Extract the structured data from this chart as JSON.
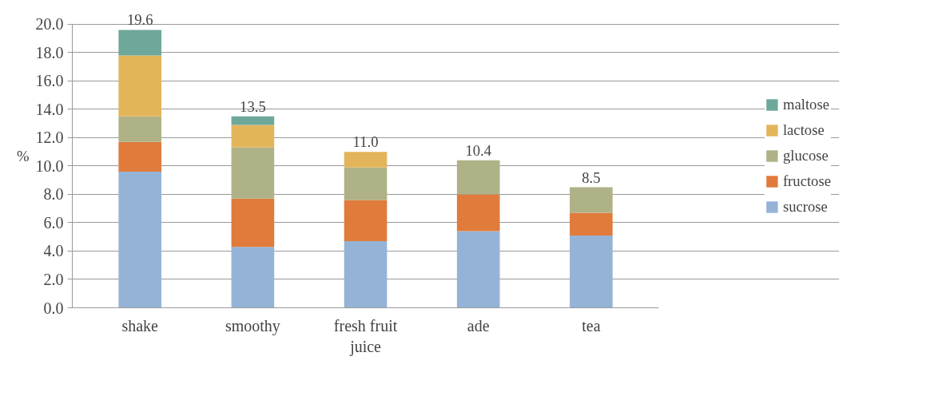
{
  "chart_data": {
    "type": "bar",
    "stacked": true,
    "ylabel": "%",
    "categories": [
      "shake",
      "smoothy",
      "fresh fruit juice",
      "ade",
      "tea"
    ],
    "series": [
      {
        "name": "sucrose",
        "color": "#95b3d7",
        "values": [
          9.6,
          4.3,
          4.7,
          5.4,
          5.1
        ]
      },
      {
        "name": "fructose",
        "color": "#e07b3c",
        "values": [
          2.1,
          3.4,
          2.9,
          2.6,
          1.6
        ]
      },
      {
        "name": "glucose",
        "color": "#afb287",
        "values": [
          1.8,
          3.6,
          2.3,
          2.4,
          1.8
        ]
      },
      {
        "name": "lactose",
        "color": "#e3b55a",
        "values": [
          4.3,
          1.6,
          1.1,
          0,
          0
        ]
      },
      {
        "name": "maltose",
        "color": "#6ea89b",
        "values": [
          1.8,
          0.6,
          0,
          0,
          0
        ]
      }
    ],
    "totals": [
      "19.6",
      "13.5",
      "11.0",
      "10.4",
      "8.5"
    ],
    "ylim": [
      0,
      20
    ],
    "yticks": [
      {
        "value": 0,
        "label": "0.0"
      },
      {
        "value": 2,
        "label": "2.0"
      },
      {
        "value": 4,
        "label": "4.0"
      },
      {
        "value": 6,
        "label": "6.0"
      },
      {
        "value": 8,
        "label": "8.0"
      },
      {
        "value": 10,
        "label": "10.0"
      },
      {
        "value": 12,
        "label": "12.0"
      },
      {
        "value": 14,
        "label": "14.0"
      },
      {
        "value": 16,
        "label": "16.0"
      },
      {
        "value": 18,
        "label": "18.0"
      },
      {
        "value": 20,
        "label": "20.0"
      }
    ],
    "grid": "y",
    "legend": "right"
  }
}
